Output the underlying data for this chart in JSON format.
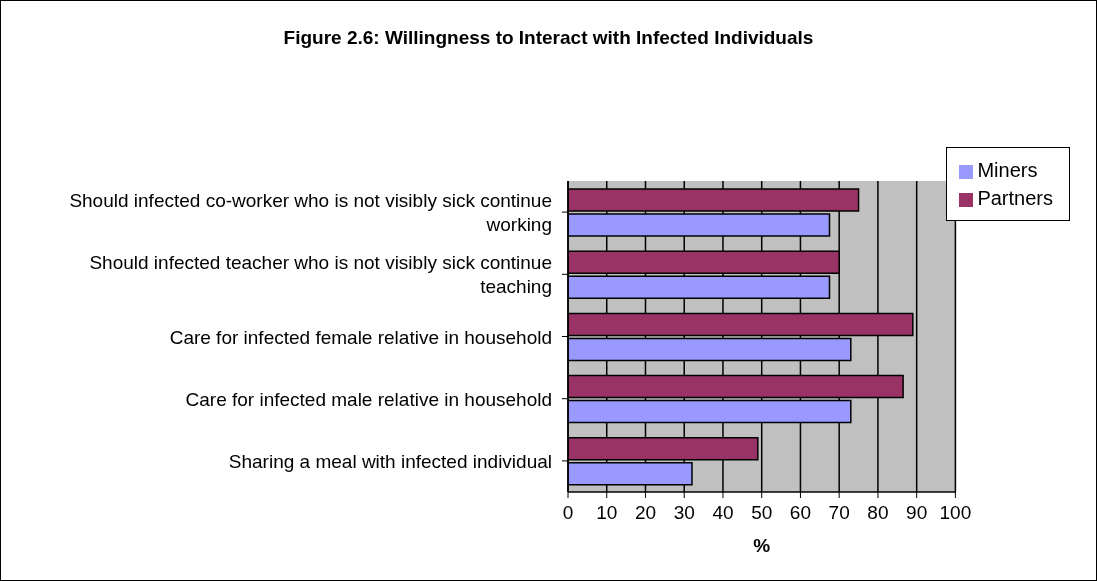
{
  "chart_data": {
    "type": "bar",
    "orientation": "horizontal",
    "title": "Figure 2.6: Willingness to Interact with Infected Individuals",
    "xlabel": "%",
    "categories": [
      "Should infected co-worker who is not visibly sick continue working",
      "Should infected teacher who is not visibly sick continue teaching",
      "Care for infected female relative in household",
      "Care for infected male relative in household",
      "Sharing a meal with infected individual"
    ],
    "series": [
      {
        "name": "Partners",
        "color": "#993366",
        "values": [
          75,
          70,
          89,
          86.5,
          49
        ]
      },
      {
        "name": "Miners",
        "color": "#9999ff",
        "values": [
          67.5,
          67.5,
          73,
          73,
          32
        ]
      }
    ],
    "xlim": [
      0,
      100
    ],
    "xticks": [
      0,
      10,
      20,
      30,
      40,
      50,
      60,
      70,
      80,
      90,
      100
    ],
    "grid": "x",
    "legend": "right"
  }
}
